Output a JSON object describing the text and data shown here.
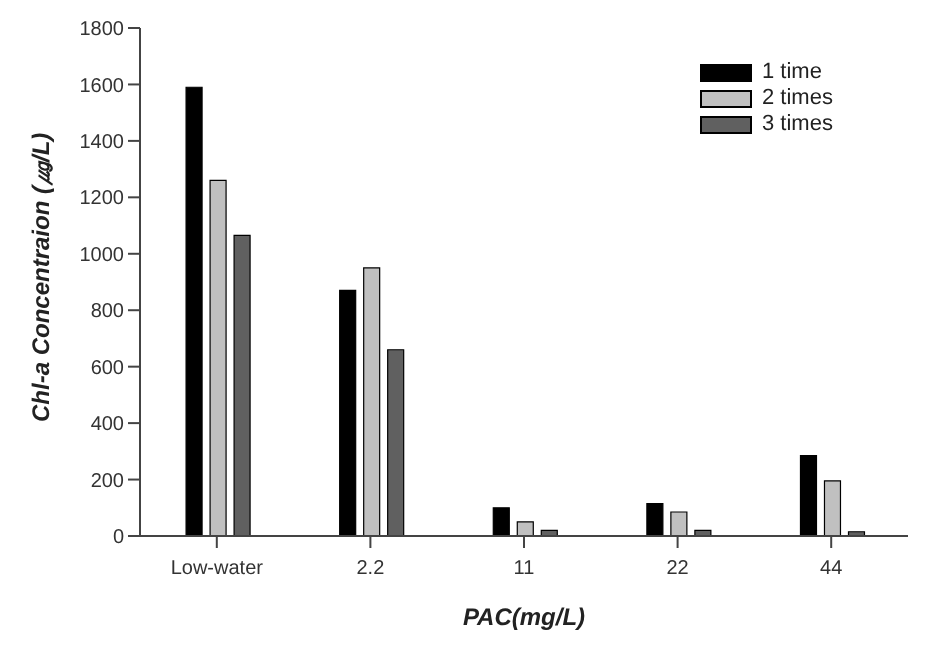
{
  "chart_data": {
    "type": "bar",
    "xlabel": "PAC(mg/L)",
    "ylabel": "Chl-a Concentraion (㎍/L)",
    "categories": [
      "Low-water",
      "2.2",
      "11",
      "22",
      "44"
    ],
    "series": [
      {
        "name": "1 time",
        "color": "#000000",
        "values": [
          1590,
          870,
          100,
          115,
          285
        ]
      },
      {
        "name": "2 times",
        "color": "#c0c0c0",
        "values": [
          1260,
          950,
          50,
          85,
          195
        ]
      },
      {
        "name": "3 times",
        "color": "#606060",
        "values": [
          1065,
          660,
          20,
          20,
          15
        ]
      }
    ],
    "ylim": [
      0,
      1800
    ],
    "yticks": [
      0,
      200,
      400,
      600,
      800,
      1000,
      1200,
      1400,
      1600,
      1800
    ],
    "grid": false,
    "legend": "top right"
  }
}
